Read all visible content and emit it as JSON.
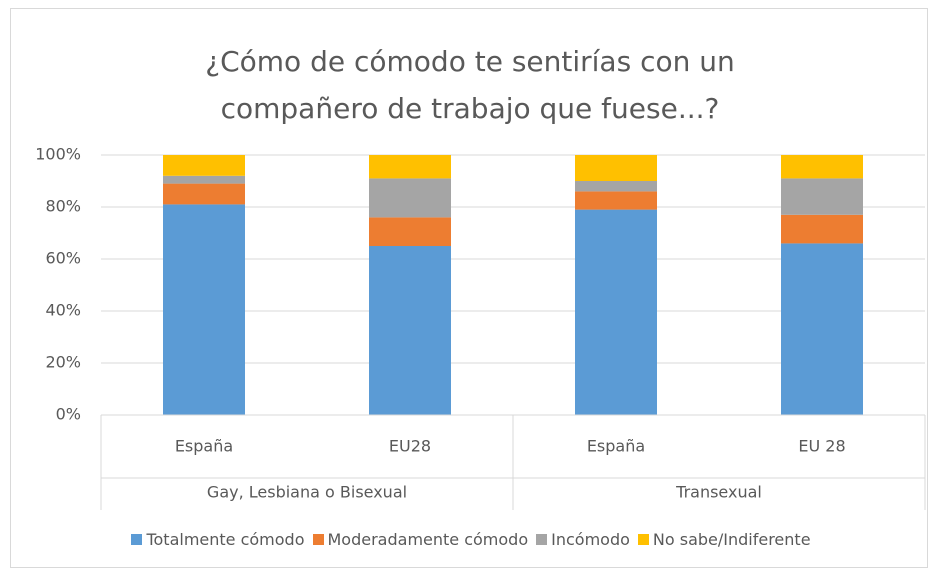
{
  "chart_data": {
    "type": "stacked_bar",
    "title": "¿Cómo de cómodo te sentirías con un compañero de trabajo que fuese...?",
    "categories": [
      "España",
      "EU28",
      "España",
      "EU 28"
    ],
    "groups": [
      "Gay, Lesbiana o Bisexual",
      "Transexual"
    ],
    "series": [
      {
        "name": "Totalmente cómodo",
        "color": "#5b9bd5",
        "values": [
          81,
          65,
          79,
          66
        ]
      },
      {
        "name": "Moderadamente cómodo",
        "color": "#ed7d31",
        "values": [
          8,
          11,
          7,
          11
        ]
      },
      {
        "name": "Incómodo",
        "color": "#a5a5a5",
        "values": [
          3,
          15,
          4,
          14
        ]
      },
      {
        "name": "No sabe/Indiferente",
        "color": "#ffc000",
        "values": [
          8,
          9,
          10,
          9
        ]
      }
    ],
    "ylim": [
      0,
      100
    ],
    "yticks": [
      {
        "value": 0,
        "label": "0%"
      },
      {
        "value": 20,
        "label": "20%"
      },
      {
        "value": 40,
        "label": "40%"
      },
      {
        "value": 60,
        "label": "60%"
      },
      {
        "value": 80,
        "label": "80%"
      },
      {
        "value": 100,
        "label": "100%"
      }
    ],
    "grid": true,
    "legend": "bottom"
  }
}
